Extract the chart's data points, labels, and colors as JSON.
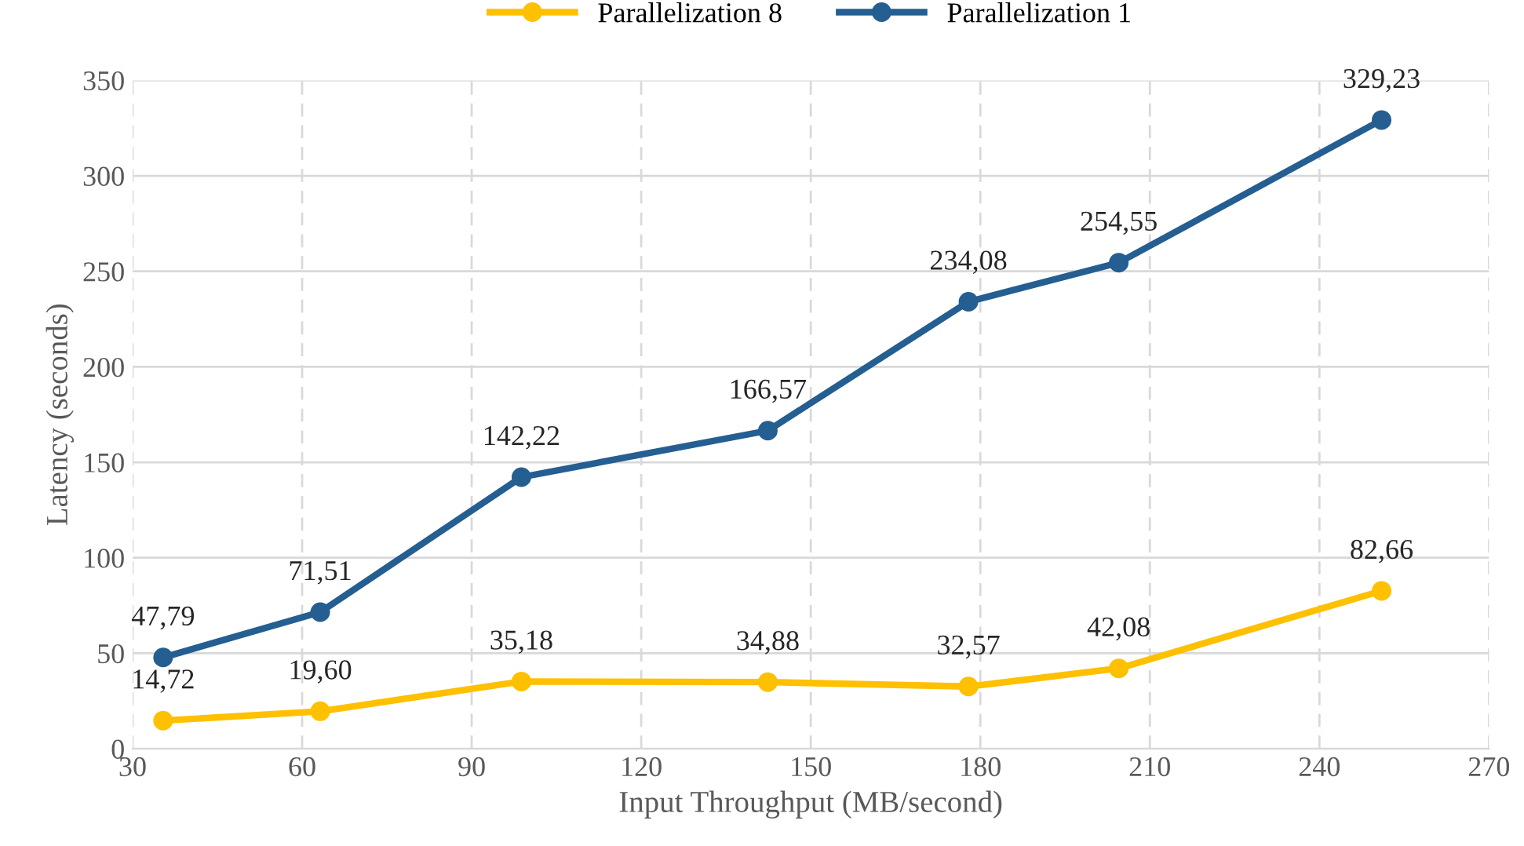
{
  "chart_data": {
    "type": "line",
    "xlabel": "Input Throughput (MB/second)",
    "ylabel": "Latency (seconds)",
    "x": [
      35.4,
      63.2,
      98.8,
      142.4,
      177.9,
      204.5,
      251
    ],
    "series": [
      {
        "name": "Parallelization 8",
        "color": "#ffc000",
        "values": [
          14.72,
          19.6,
          35.18,
          34.88,
          32.57,
          42.08,
          82.66
        ],
        "value_labels": [
          "14,72",
          "19,60",
          "35,18",
          "34,88",
          "32,57",
          "42,08",
          "82,66"
        ]
      },
      {
        "name": "Parallelization 1",
        "color": "#255e91",
        "values": [
          47.79,
          71.51,
          142.22,
          166.57,
          234.08,
          254.55,
          329.23
        ],
        "value_labels": [
          "47,79",
          "71,51",
          "142,22",
          "166,57",
          "234,08",
          "254,55",
          "329,23"
        ]
      }
    ],
    "xlim": [
      30,
      270
    ],
    "xticks": [
      30,
      60,
      90,
      120,
      150,
      180,
      210,
      240,
      270
    ],
    "ylim": [
      0,
      350
    ],
    "yticks": [
      0,
      50,
      100,
      150,
      200,
      250,
      300,
      350
    ],
    "grid": true,
    "legend": "top",
    "marker": "circle",
    "line_style": "solid"
  }
}
